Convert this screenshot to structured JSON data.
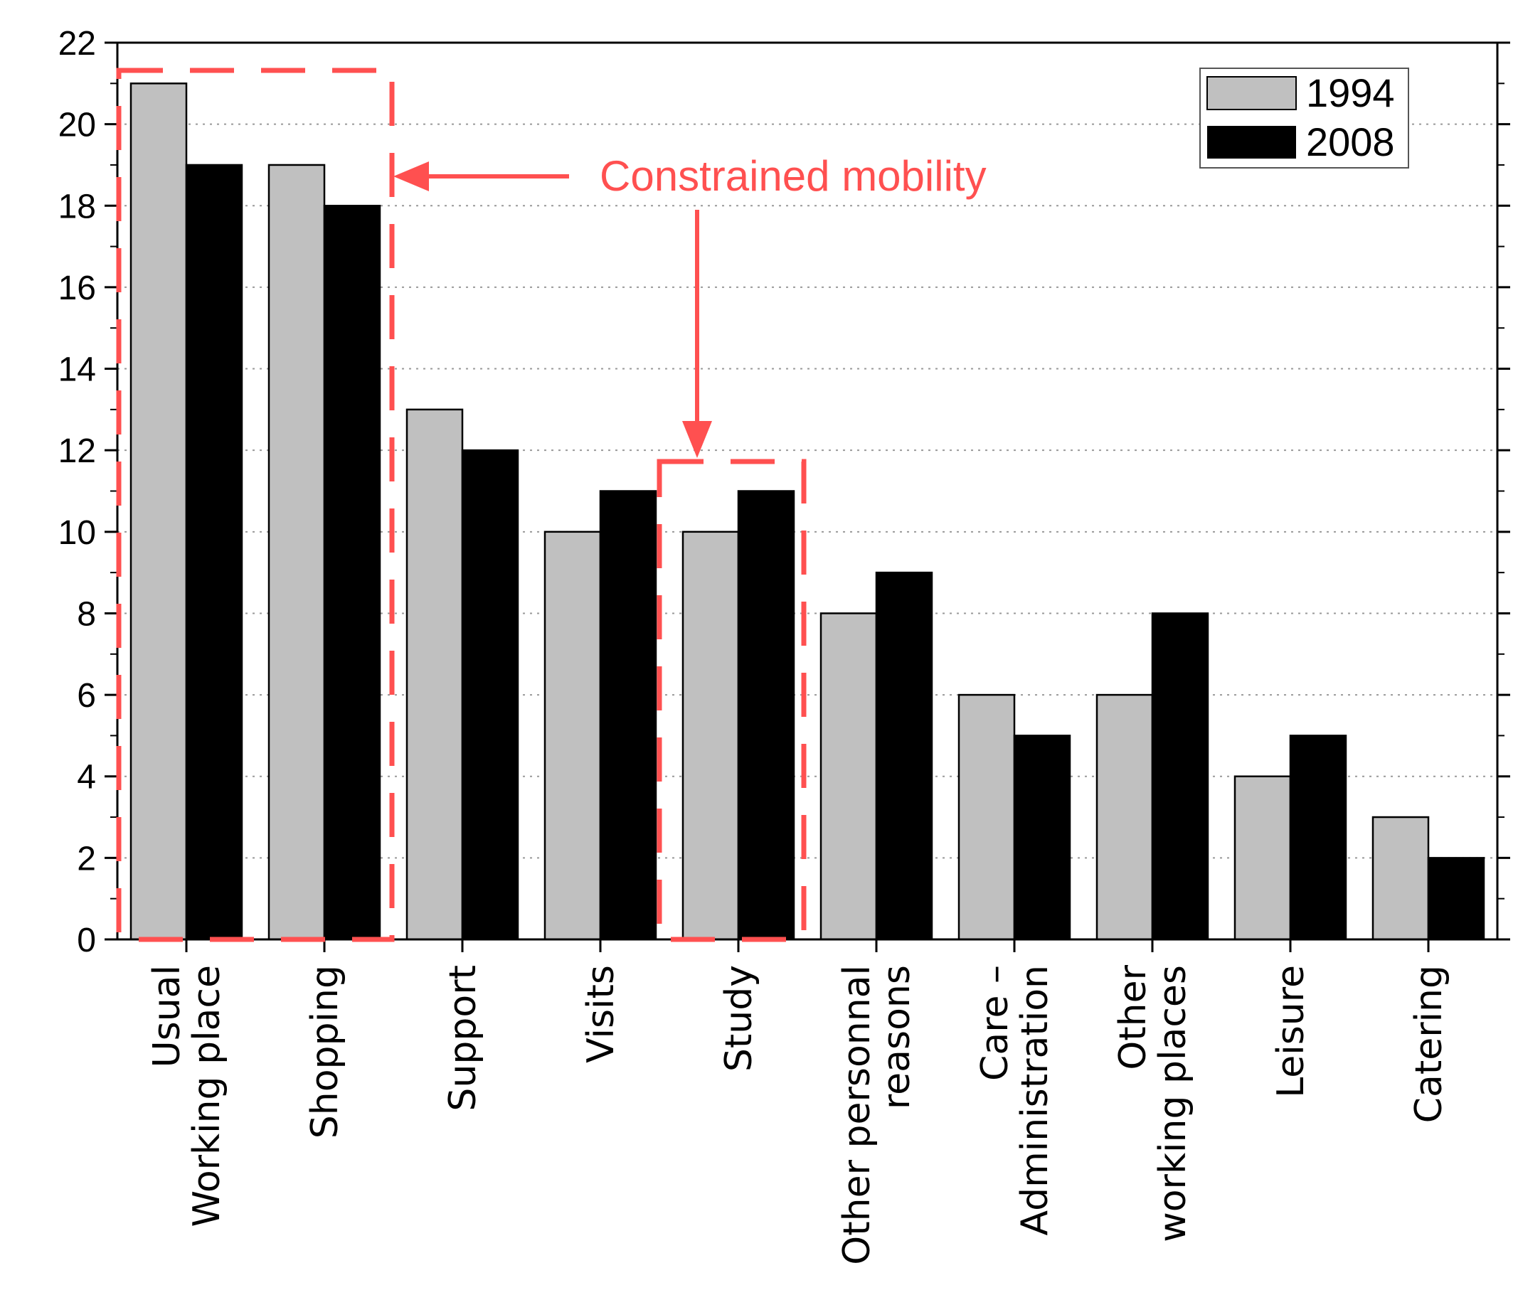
{
  "chart_data": {
    "type": "bar",
    "title": "",
    "xlabel": "",
    "ylabel": "",
    "ylim": [
      0,
      22
    ],
    "yticks": [
      0,
      2,
      4,
      6,
      8,
      10,
      12,
      14,
      16,
      18,
      20,
      22
    ],
    "grid": "horizontal dotted",
    "legend_position": "top-right",
    "categories": [
      [
        "Usual",
        "Working place"
      ],
      [
        "Shopping"
      ],
      [
        "Support"
      ],
      [
        "Visits"
      ],
      [
        "Study"
      ],
      [
        "Other personnal",
        "reasons"
      ],
      [
        "Care –",
        "Administration"
      ],
      [
        "Other",
        "working places"
      ],
      [
        "Leisure"
      ],
      [
        "Catering"
      ]
    ],
    "series": [
      {
        "name": "1994",
        "color": "#c0c0c0",
        "values": [
          21,
          19,
          13,
          10,
          10,
          8,
          6,
          6,
          4,
          3
        ]
      },
      {
        "name": "2008",
        "color": "#000000",
        "values": [
          19,
          18,
          12,
          11,
          11,
          9,
          5,
          8,
          5,
          2
        ]
      }
    ],
    "annotations": [
      {
        "text": "Constrained mobility",
        "color": "#ff5050",
        "highlighted_categories": [
          "Usual Working place",
          "Shopping",
          "Study"
        ]
      }
    ]
  }
}
